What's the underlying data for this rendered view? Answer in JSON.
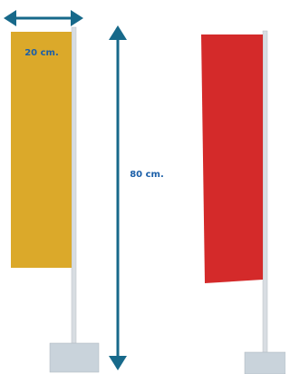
{
  "labels": {
    "width": "20 cm.",
    "height": "80 cm."
  }
}
